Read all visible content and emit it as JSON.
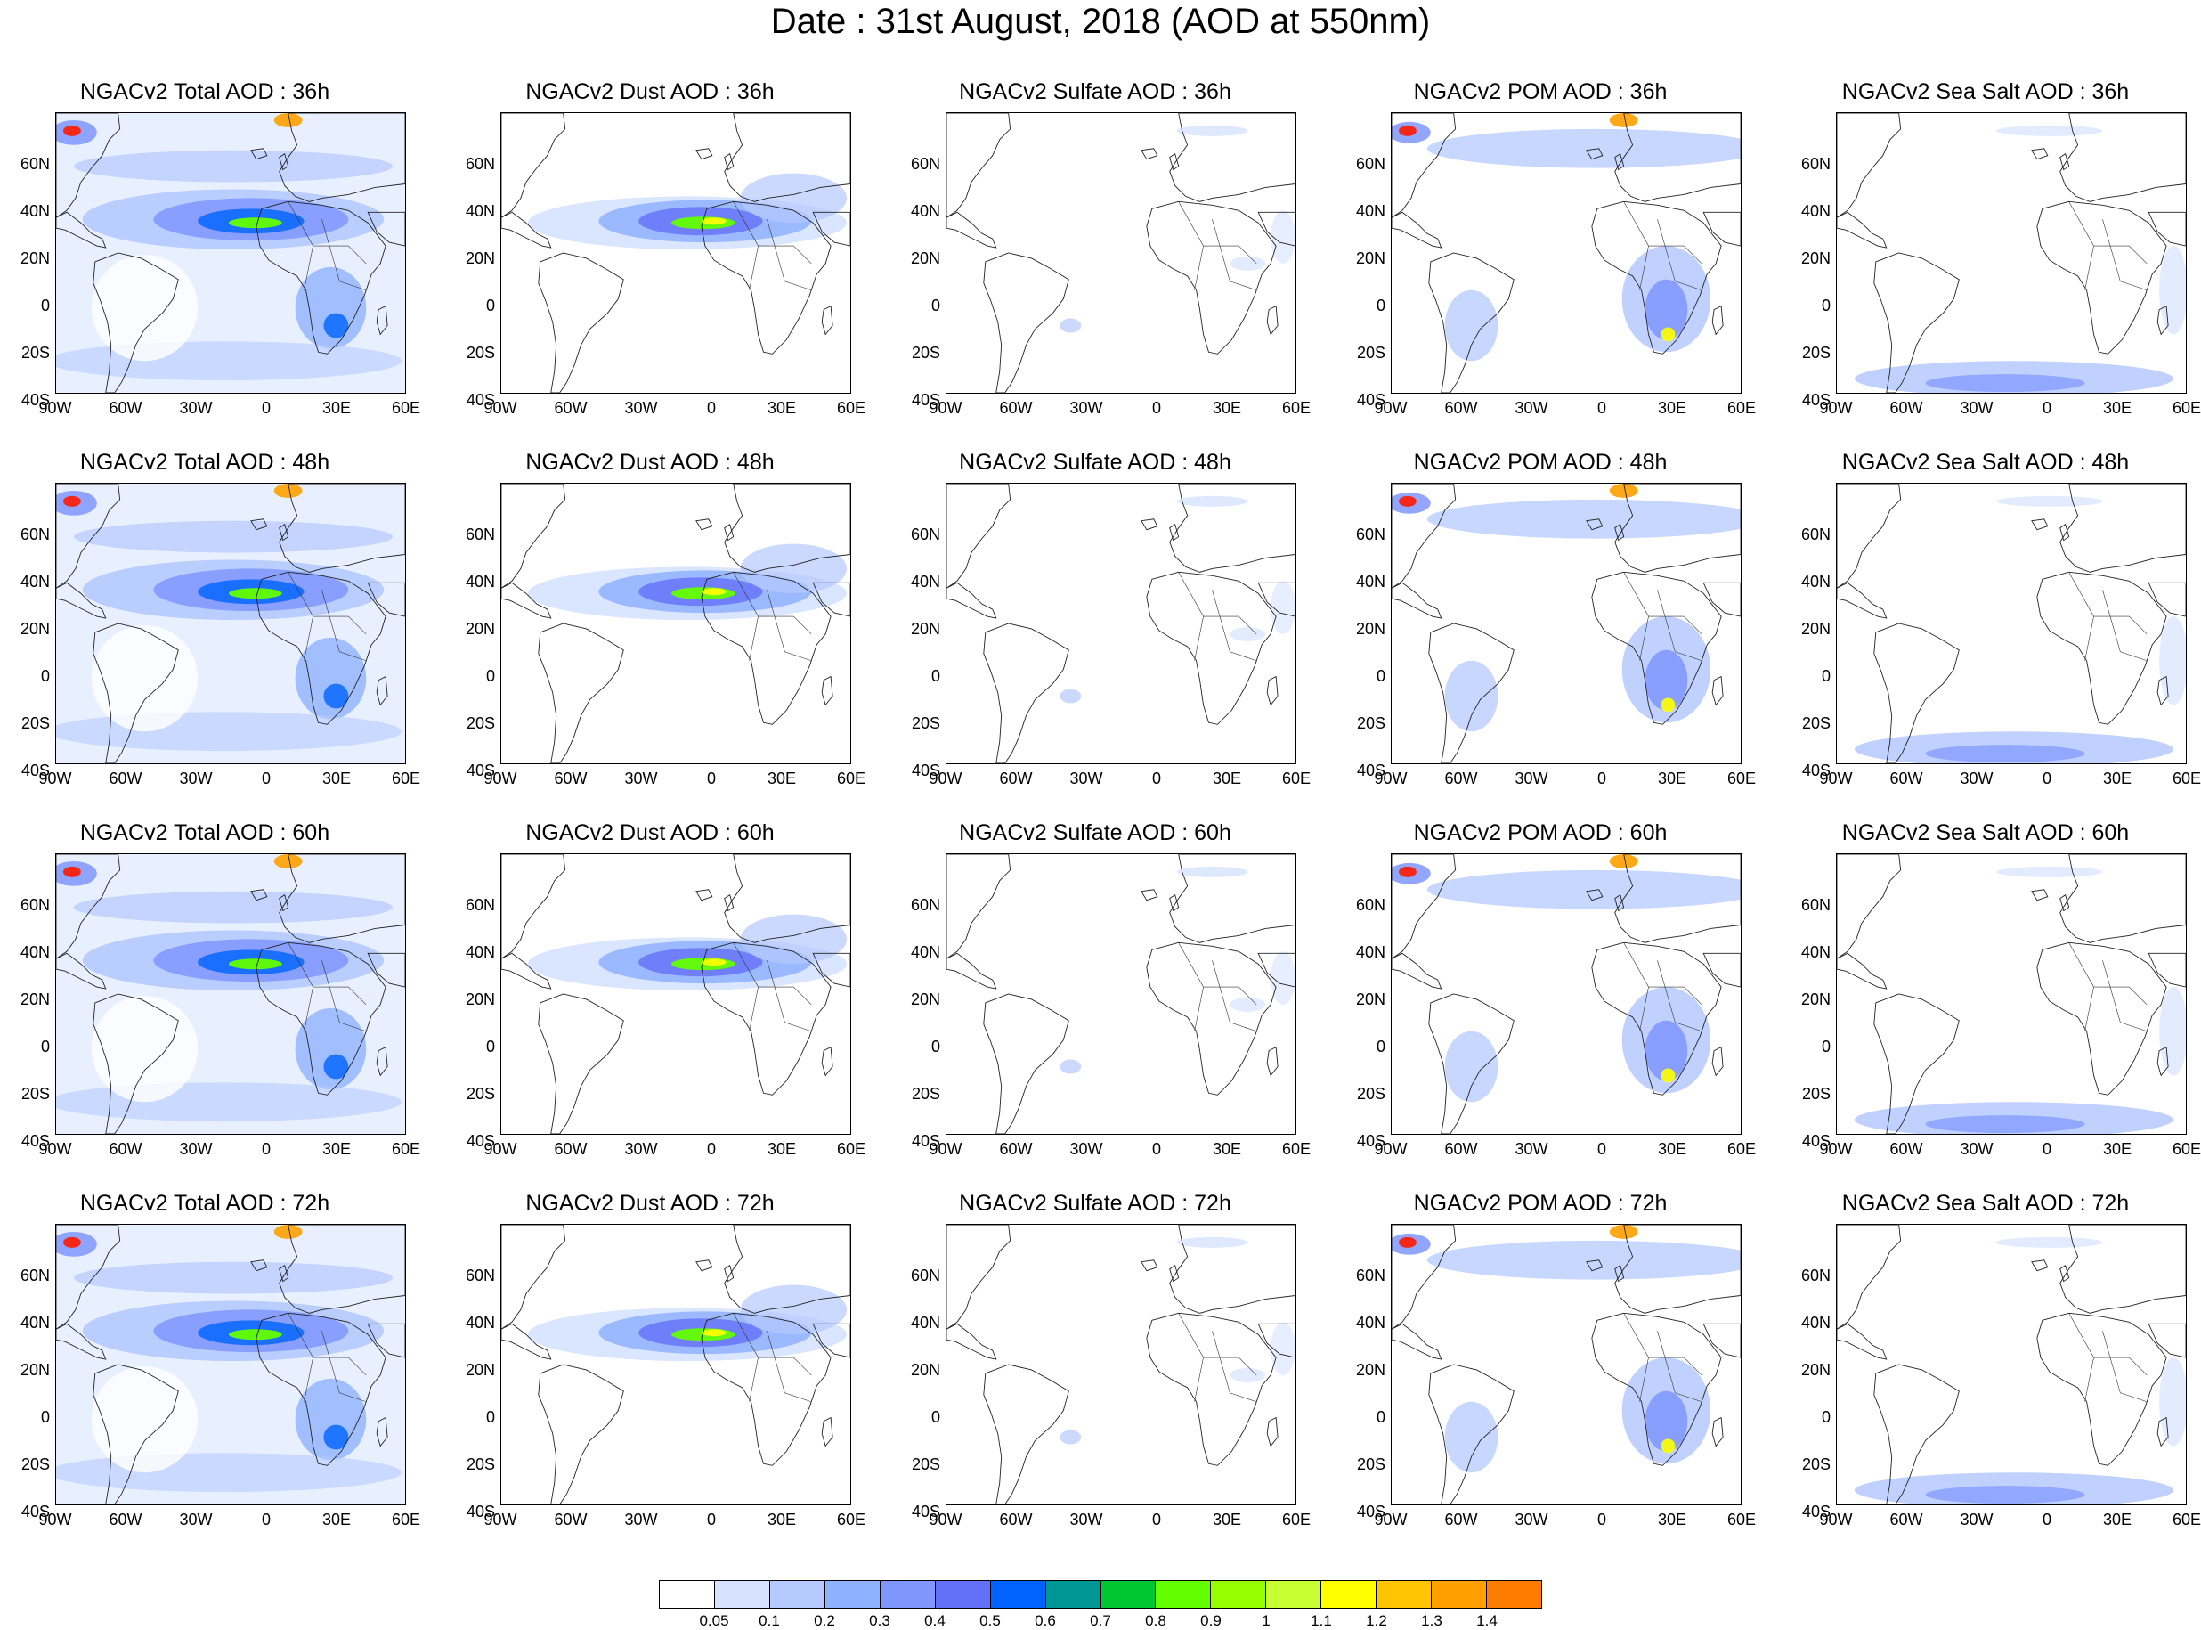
{
  "title": "Date : 31st August, 2018 (AOD at 550nm)",
  "lat_ticks": [
    "60N",
    "40N",
    "20N",
    "0",
    "20S",
    "40S"
  ],
  "lon_ticks": [
    "90W",
    "60W",
    "30W",
    "0",
    "30E",
    "60E"
  ],
  "panels": [
    [
      {
        "title": "NGACv2 Total AOD : 36h",
        "species": "total"
      },
      {
        "title": "NGACv2 Dust AOD : 36h",
        "species": "dust"
      },
      {
        "title": "NGACv2 Sulfate AOD : 36h",
        "species": "sulfate"
      },
      {
        "title": "NGACv2 POM AOD : 36h",
        "species": "pom"
      },
      {
        "title": "NGACv2 Sea Salt AOD : 36h",
        "species": "seasalt"
      }
    ],
    [
      {
        "title": "NGACv2 Total AOD : 48h",
        "species": "total"
      },
      {
        "title": "NGACv2 Dust AOD : 48h",
        "species": "dust"
      },
      {
        "title": "NGACv2 Sulfate AOD : 48h",
        "species": "sulfate"
      },
      {
        "title": "NGACv2 POM AOD : 48h",
        "species": "pom"
      },
      {
        "title": "NGACv2 Sea Salt AOD : 48h",
        "species": "seasalt"
      }
    ],
    [
      {
        "title": "NGACv2 Total AOD : 60h",
        "species": "total"
      },
      {
        "title": "NGACv2 Dust AOD : 60h",
        "species": "dust"
      },
      {
        "title": "NGACv2 Sulfate AOD : 60h",
        "species": "sulfate"
      },
      {
        "title": "NGACv2 POM AOD : 60h",
        "species": "pom"
      },
      {
        "title": "NGACv2 Sea Salt AOD : 60h",
        "species": "seasalt"
      }
    ],
    [
      {
        "title": "NGACv2 Total AOD : 72h",
        "species": "total"
      },
      {
        "title": "NGACv2 Dust AOD : 72h",
        "species": "dust"
      },
      {
        "title": "NGACv2 Sulfate AOD : 72h",
        "species": "sulfate"
      },
      {
        "title": "NGACv2 POM AOD : 72h",
        "species": "pom"
      },
      {
        "title": "NGACv2 Sea Salt  AOD : 72h",
        "species": "seasalt"
      }
    ]
  ],
  "colorbar": {
    "levels": [
      "0.05",
      "0.1",
      "0.2",
      "0.3",
      "0.4",
      "0.5",
      "0.6",
      "0.7",
      "0.8",
      "0.9",
      "1",
      "1.1",
      "1.2",
      "1.3",
      "1.4"
    ],
    "colors": [
      "#ffffff",
      "#d6e2ff",
      "#b5c9ff",
      "#8eb2ff",
      "#7f96ff",
      "#6370f8",
      "#0063ff",
      "#009696",
      "#00c633",
      "#63ff00",
      "#96ff00",
      "#c6ff33",
      "#ffff00",
      "#ffc600",
      "#ffa000",
      "#ff7c00",
      "#ff1900"
    ]
  }
}
